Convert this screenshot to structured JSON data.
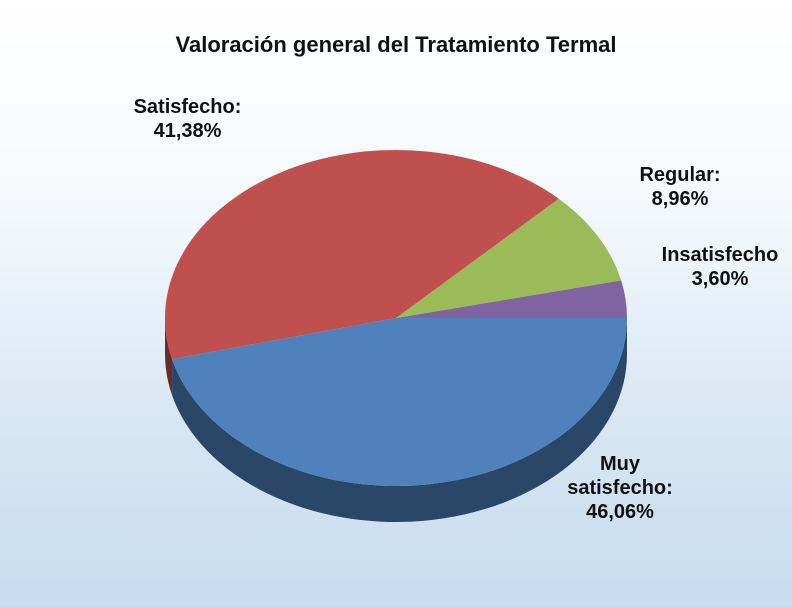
{
  "chart_data": {
    "type": "pie",
    "title": "Valoración general del Tratamiento Termal",
    "categories": [
      "Insatisfecho",
      "Regular:",
      "Satisfecho:",
      "Muy satisfecho:"
    ],
    "values": [
      3.6,
      8.96,
      41.38,
      46.06
    ],
    "value_labels": [
      "3,60%",
      "8,96%",
      "41,38%",
      "46,06%"
    ],
    "colors": [
      "#8064a2",
      "#9bbb59",
      "#c0504d",
      "#4f81bd"
    ]
  }
}
